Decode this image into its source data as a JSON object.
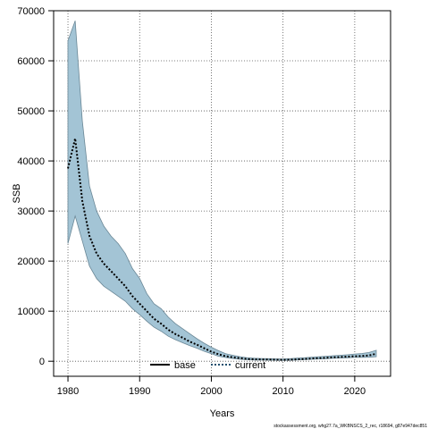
{
  "chart_data": {
    "type": "line",
    "xlabel": "Years",
    "ylabel": "SSB",
    "xlim": [
      1978,
      2025
    ],
    "ylim": [
      -3000,
      70000
    ],
    "xticks": [
      1980,
      1990,
      2000,
      2010,
      2020
    ],
    "yticks": [
      0,
      10000,
      20000,
      30000,
      40000,
      50000,
      60000,
      70000
    ],
    "grid": true,
    "legend_position": "bottom-center",
    "legend": [
      {
        "name": "base",
        "style": "solid",
        "color": "#000000"
      },
      {
        "name": "current",
        "style": "dotted",
        "color": "#1f4f6e"
      }
    ],
    "band_color": "#a3c4d5",
    "band_edge_color": "#6a8796",
    "x": [
      1980,
      1981,
      1982,
      1983,
      1984,
      1985,
      1986,
      1987,
      1988,
      1989,
      1990,
      1991,
      1992,
      1993,
      1994,
      1995,
      1996,
      1997,
      1998,
      1999,
      2000,
      2001,
      2002,
      2003,
      2004,
      2005,
      2006,
      2007,
      2008,
      2009,
      2010,
      2011,
      2012,
      2013,
      2014,
      2015,
      2016,
      2017,
      2018,
      2019,
      2020,
      2021,
      2022,
      2023
    ],
    "series": [
      {
        "name": "current",
        "values": [
          38500,
          44500,
          32000,
          25000,
          21500,
          19500,
          18000,
          16500,
          15000,
          13000,
          11500,
          10000,
          8500,
          7500,
          6300,
          5400,
          4700,
          3900,
          3300,
          2600,
          1900,
          1400,
          1000,
          800,
          600,
          450,
          380,
          360,
          330,
          300,
          260,
          300,
          380,
          450,
          550,
          620,
          700,
          780,
          850,
          920,
          1000,
          1050,
          1150,
          1500
        ],
        "lower": [
          23500,
          29000,
          24000,
          19000,
          16500,
          15000,
          14000,
          13000,
          12000,
          10500,
          9300,
          8000,
          6800,
          6000,
          5000,
          4300,
          3700,
          3100,
          2600,
          2000,
          1500,
          1000,
          750,
          550,
          400,
          300,
          250,
          230,
          210,
          190,
          180,
          200,
          260,
          320,
          400,
          460,
          520,
          580,
          640,
          700,
          760,
          780,
          800,
          900
        ],
        "upper": [
          64000,
          68000,
          48000,
          35000,
          30000,
          27000,
          25000,
          23500,
          21500,
          18500,
          16500,
          13500,
          11500,
          10500,
          8800,
          7500,
          6500,
          5500,
          4500,
          3600,
          2800,
          2100,
          1500,
          1200,
          900,
          700,
          600,
          560,
          520,
          480,
          450,
          520,
          620,
          700,
          820,
          900,
          1000,
          1100,
          1200,
          1300,
          1450,
          1550,
          1750,
          2200
        ]
      }
    ],
    "footer": "stockassessment.org, whg27.7a_WKBNSCS_2_rec, r18694, g87e947dec851"
  }
}
